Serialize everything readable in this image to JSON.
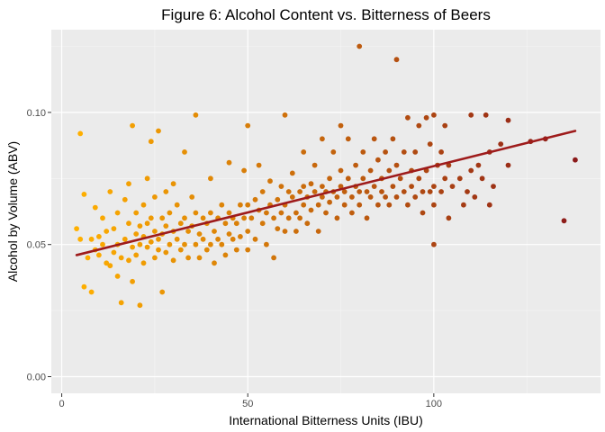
{
  "chart_data": {
    "type": "scatter",
    "title": "Figure 6: Alcohol Content vs. Bitterness of Beers",
    "xlabel": "International Bitterness Units (IBU)",
    "ylabel": "Alcohol by Volume (ABV)",
    "xlim": [
      -2.8,
      144.8
    ],
    "ylim": [
      -0.0063,
      0.1313
    ],
    "x_ticks": [
      0,
      50,
      100
    ],
    "x_tick_labels": [
      "0",
      "50",
      "100"
    ],
    "y_ticks": [
      0,
      0.05,
      0.1
    ],
    "y_tick_labels": [
      "0.00",
      "0.05",
      "0.10"
    ],
    "grid": true,
    "legend": "none",
    "color_scale": {
      "low": "#FFB000",
      "high": "#8B1A1A",
      "mapped_to": "IBU"
    },
    "trend_line": {
      "method": "linear",
      "color": "#9E1B1B",
      "x": [
        4,
        138
      ],
      "y": [
        0.046,
        0.093
      ]
    },
    "points": [
      [
        4,
        0.056
      ],
      [
        5,
        0.092
      ],
      [
        5,
        0.052
      ],
      [
        6,
        0.069
      ],
      [
        6,
        0.034
      ],
      [
        7,
        0.045
      ],
      [
        8,
        0.032
      ],
      [
        8,
        0.052
      ],
      [
        9,
        0.048
      ],
      [
        9,
        0.064
      ],
      [
        10,
        0.046
      ],
      [
        10,
        0.053
      ],
      [
        11,
        0.06
      ],
      [
        11,
        0.05
      ],
      [
        12,
        0.043
      ],
      [
        12,
        0.055
      ],
      [
        13,
        0.042
      ],
      [
        13,
        0.07
      ],
      [
        14,
        0.047
      ],
      [
        14,
        0.056
      ],
      [
        15,
        0.05
      ],
      [
        15,
        0.062
      ],
      [
        15,
        0.038
      ],
      [
        16,
        0.028
      ],
      [
        16,
        0.045
      ],
      [
        17,
        0.052
      ],
      [
        17,
        0.067
      ],
      [
        18,
        0.058
      ],
      [
        18,
        0.044
      ],
      [
        18,
        0.073
      ],
      [
        19,
        0.049
      ],
      [
        19,
        0.095
      ],
      [
        19,
        0.036
      ],
      [
        20,
        0.054
      ],
      [
        20,
        0.062
      ],
      [
        20,
        0.046
      ],
      [
        21,
        0.027
      ],
      [
        21,
        0.05
      ],
      [
        21,
        0.057
      ],
      [
        22,
        0.065
      ],
      [
        22,
        0.043
      ],
      [
        22,
        0.053
      ],
      [
        23,
        0.058
      ],
      [
        23,
        0.075
      ],
      [
        23,
        0.049
      ],
      [
        24,
        0.089
      ],
      [
        24,
        0.051
      ],
      [
        24,
        0.06
      ],
      [
        25,
        0.045
      ],
      [
        25,
        0.055
      ],
      [
        25,
        0.068
      ],
      [
        26,
        0.052
      ],
      [
        26,
        0.093
      ],
      [
        26,
        0.048
      ],
      [
        27,
        0.032
      ],
      [
        27,
        0.06
      ],
      [
        27,
        0.054
      ],
      [
        28,
        0.047
      ],
      [
        28,
        0.057
      ],
      [
        28,
        0.07
      ],
      [
        29,
        0.05
      ],
      [
        29,
        0.062
      ],
      [
        30,
        0.055
      ],
      [
        30,
        0.044
      ],
      [
        30,
        0.073
      ],
      [
        31,
        0.052
      ],
      [
        31,
        0.065
      ],
      [
        32,
        0.048
      ],
      [
        32,
        0.058
      ],
      [
        33,
        0.06
      ],
      [
        33,
        0.05
      ],
      [
        33,
        0.085
      ],
      [
        34,
        0.055
      ],
      [
        34,
        0.045
      ],
      [
        35,
        0.057
      ],
      [
        35,
        0.068
      ],
      [
        36,
        0.05
      ],
      [
        36,
        0.062
      ],
      [
        36,
        0.099
      ],
      [
        37,
        0.054
      ],
      [
        37,
        0.045
      ],
      [
        38,
        0.06
      ],
      [
        38,
        0.052
      ],
      [
        39,
        0.058
      ],
      [
        39,
        0.048
      ],
      [
        40,
        0.062
      ],
      [
        40,
        0.05
      ],
      [
        40,
        0.075
      ],
      [
        41,
        0.055
      ],
      [
        41,
        0.043
      ],
      [
        42,
        0.06
      ],
      [
        42,
        0.052
      ],
      [
        43,
        0.065
      ],
      [
        43,
        0.05
      ],
      [
        44,
        0.058
      ],
      [
        44,
        0.046
      ],
      [
        45,
        0.062
      ],
      [
        45,
        0.054
      ],
      [
        45,
        0.081
      ],
      [
        46,
        0.052
      ],
      [
        46,
        0.06
      ],
      [
        47,
        0.048
      ],
      [
        47,
        0.058
      ],
      [
        48,
        0.065
      ],
      [
        48,
        0.053
      ],
      [
        49,
        0.06
      ],
      [
        49,
        0.078
      ],
      [
        50,
        0.055
      ],
      [
        50,
        0.095
      ],
      [
        50,
        0.065
      ],
      [
        50,
        0.048
      ],
      [
        51,
        0.06
      ],
      [
        52,
        0.067
      ],
      [
        52,
        0.052
      ],
      [
        53,
        0.063
      ],
      [
        53,
        0.08
      ],
      [
        54,
        0.058
      ],
      [
        54,
        0.07
      ],
      [
        55,
        0.062
      ],
      [
        55,
        0.05
      ],
      [
        56,
        0.065
      ],
      [
        56,
        0.074
      ],
      [
        57,
        0.06
      ],
      [
        57,
        0.045
      ],
      [
        58,
        0.067
      ],
      [
        58,
        0.056
      ],
      [
        59,
        0.072
      ],
      [
        59,
        0.062
      ],
      [
        60,
        0.065
      ],
      [
        60,
        0.099
      ],
      [
        60,
        0.055
      ],
      [
        61,
        0.07
      ],
      [
        61,
        0.06
      ],
      [
        62,
        0.068
      ],
      [
        62,
        0.077
      ],
      [
        63,
        0.062
      ],
      [
        63,
        0.055
      ],
      [
        64,
        0.07
      ],
      [
        64,
        0.06
      ],
      [
        65,
        0.072
      ],
      [
        65,
        0.065
      ],
      [
        65,
        0.085
      ],
      [
        66,
        0.068
      ],
      [
        66,
        0.058
      ],
      [
        67,
        0.073
      ],
      [
        67,
        0.063
      ],
      [
        68,
        0.07
      ],
      [
        68,
        0.08
      ],
      [
        69,
        0.065
      ],
      [
        69,
        0.055
      ],
      [
        70,
        0.072
      ],
      [
        70,
        0.068
      ],
      [
        70,
        0.09
      ],
      [
        71,
        0.07
      ],
      [
        71,
        0.062
      ],
      [
        72,
        0.075
      ],
      [
        72,
        0.066
      ],
      [
        73,
        0.07
      ],
      [
        73,
        0.085
      ],
      [
        74,
        0.068
      ],
      [
        74,
        0.06
      ],
      [
        75,
        0.072
      ],
      [
        75,
        0.078
      ],
      [
        75,
        0.095
      ],
      [
        76,
        0.07
      ],
      [
        76,
        0.065
      ],
      [
        77,
        0.075
      ],
      [
        77,
        0.09
      ],
      [
        78,
        0.068
      ],
      [
        78,
        0.062
      ],
      [
        79,
        0.072
      ],
      [
        79,
        0.08
      ],
      [
        80,
        0.125
      ],
      [
        80,
        0.07
      ],
      [
        80,
        0.065
      ],
      [
        81,
        0.075
      ],
      [
        81,
        0.085
      ],
      [
        82,
        0.07
      ],
      [
        82,
        0.06
      ],
      [
        83,
        0.078
      ],
      [
        83,
        0.068
      ],
      [
        84,
        0.09
      ],
      [
        84,
        0.072
      ],
      [
        85,
        0.065
      ],
      [
        85,
        0.082
      ],
      [
        86,
        0.075
      ],
      [
        86,
        0.07
      ],
      [
        87,
        0.068
      ],
      [
        87,
        0.085
      ],
      [
        88,
        0.078
      ],
      [
        88,
        0.065
      ],
      [
        89,
        0.09
      ],
      [
        89,
        0.072
      ],
      [
        90,
        0.12
      ],
      [
        90,
        0.068
      ],
      [
        90,
        0.08
      ],
      [
        91,
        0.075
      ],
      [
        92,
        0.085
      ],
      [
        92,
        0.07
      ],
      [
        93,
        0.098
      ],
      [
        93,
        0.065
      ],
      [
        94,
        0.078
      ],
      [
        94,
        0.072
      ],
      [
        95,
        0.068
      ],
      [
        95,
        0.085
      ],
      [
        96,
        0.075
      ],
      [
        96,
        0.095
      ],
      [
        97,
        0.07
      ],
      [
        97,
        0.062
      ],
      [
        98,
        0.078
      ],
      [
        98,
        0.098
      ],
      [
        99,
        0.07
      ],
      [
        99,
        0.088
      ],
      [
        100,
        0.05
      ],
      [
        100,
        0.099
      ],
      [
        100,
        0.072
      ],
      [
        100,
        0.065
      ],
      [
        101,
        0.08
      ],
      [
        102,
        0.085
      ],
      [
        102,
        0.07
      ],
      [
        103,
        0.075
      ],
      [
        103,
        0.095
      ],
      [
        104,
        0.06
      ],
      [
        104,
        0.08
      ],
      [
        105,
        0.072
      ],
      [
        107,
        0.075
      ],
      [
        108,
        0.065
      ],
      [
        109,
        0.07
      ],
      [
        110,
        0.099
      ],
      [
        110,
        0.078
      ],
      [
        111,
        0.068
      ],
      [
        112,
        0.08
      ],
      [
        113,
        0.075
      ],
      [
        114,
        0.099
      ],
      [
        115,
        0.065
      ],
      [
        115,
        0.085
      ],
      [
        116,
        0.072
      ],
      [
        118,
        0.088
      ],
      [
        120,
        0.08
      ],
      [
        120,
        0.097
      ],
      [
        126,
        0.089
      ],
      [
        130,
        0.09
      ],
      [
        135,
        0.059
      ],
      [
        138,
        0.082
      ]
    ]
  }
}
